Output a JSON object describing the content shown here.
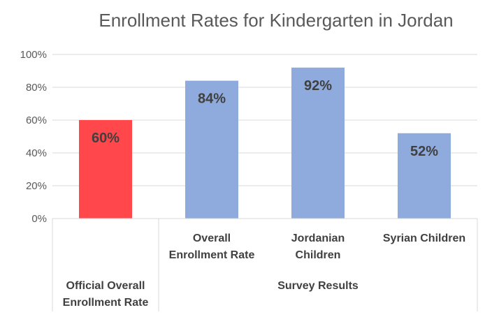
{
  "chart_data": {
    "type": "bar",
    "title": "Enrollment Rates for Kindergarten in Jordan",
    "xlabel": "",
    "ylabel": "",
    "ylim": [
      0,
      100
    ],
    "y_ticks": [
      "0%",
      "20%",
      "40%",
      "60%",
      "80%",
      "100%"
    ],
    "y_tick_values": [
      0,
      20,
      40,
      60,
      80,
      100
    ],
    "grid": true,
    "legend": "none",
    "categories": [
      {
        "group": "Official Overall Enrollment Rate",
        "label": ""
      },
      {
        "group": "Survey Results",
        "label": "Overall Enrollment Rate"
      },
      {
        "group": "Survey Results",
        "label": "Jordanian Children"
      },
      {
        "group": "Survey Results",
        "label": "Syrian Children"
      }
    ],
    "groups": [
      "Official Overall Enrollment Rate",
      "Survey Results"
    ],
    "values": [
      60,
      84,
      92,
      52
    ],
    "data_labels": [
      "60%",
      "84%",
      "92%",
      "52%"
    ],
    "colors": [
      "#FF474C",
      "#8FAADC",
      "#8FAADC",
      "#8FAADC"
    ]
  }
}
